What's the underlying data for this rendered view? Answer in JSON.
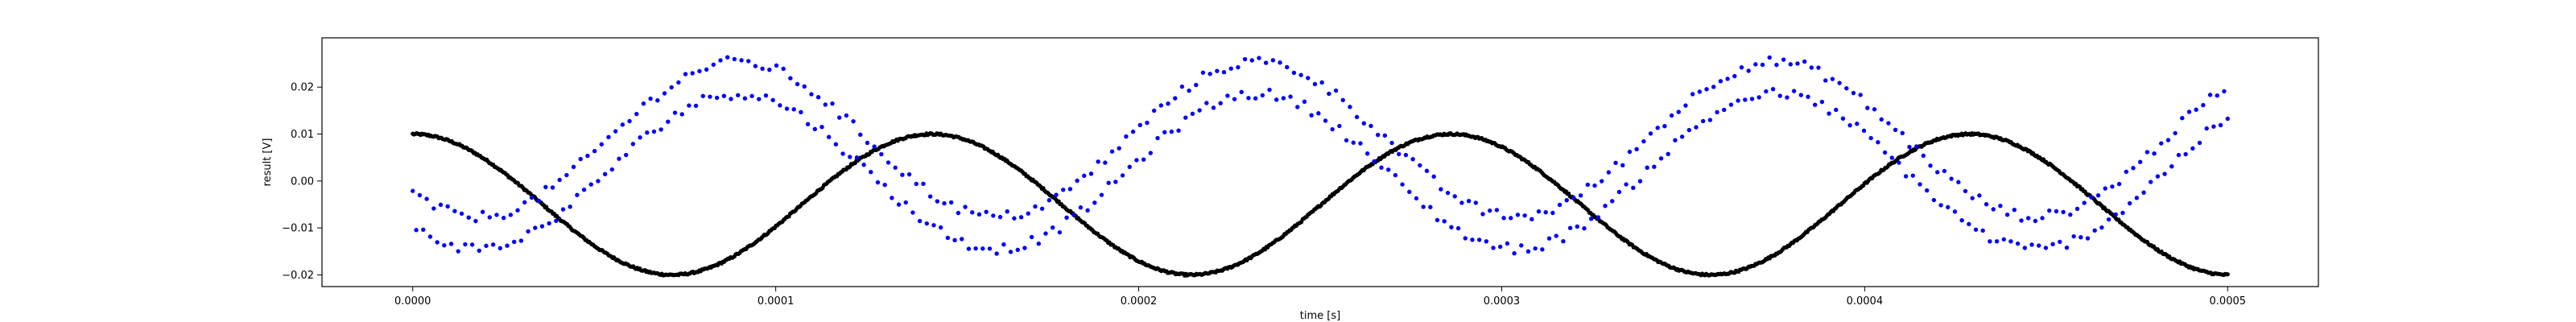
{
  "chart_data": {
    "type": "scatter",
    "title": "",
    "xlabel": "time [s]",
    "ylabel": "result [V]",
    "xlim": [
      -2.5e-05,
      0.000525
    ],
    "ylim": [
      -0.0225,
      0.0305
    ],
    "xticks": [
      0.0,
      0.0001,
      0.0002,
      0.0003,
      0.0004,
      0.0005
    ],
    "xtick_labels": [
      "0.0000",
      "0.0001",
      "0.0002",
      "0.0003",
      "0.0004",
      "0.0005"
    ],
    "yticks": [
      -0.02,
      -0.01,
      0.0,
      0.01,
      0.02
    ],
    "ytick_labels": [
      "−0.02",
      "−0.01",
      "0.00",
      "0.01",
      "0.02"
    ],
    "grid": false,
    "legend": "none",
    "series": [
      {
        "color": "#000000",
        "marker": "dot",
        "model": "sine",
        "offset_V": -0.005,
        "amplitude_V": 0.015,
        "period_s": 0.000143,
        "phase_rad": 1.571,
        "x_range_s": [
          0.0,
          0.0005
        ],
        "points": 1400
      },
      {
        "color": "#0000ff",
        "marker": "dot",
        "model": "two_interleaved_sines",
        "offset_V": 0.0055,
        "amplitude_V": 0.0165,
        "period_s": 0.000143,
        "phase_rad": -2.36,
        "band_separation_V": 0.0068,
        "x_range_s": [
          0.0,
          0.0005
        ],
        "points": 520
      }
    ]
  }
}
